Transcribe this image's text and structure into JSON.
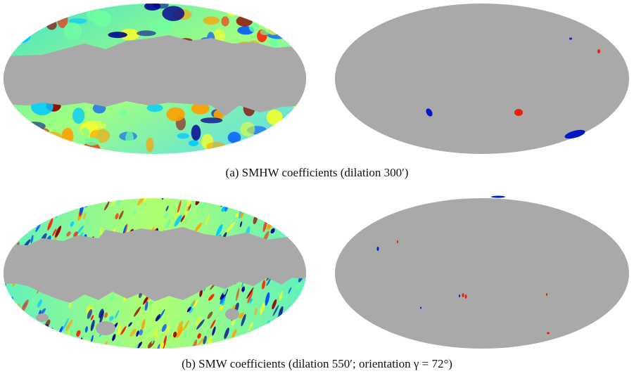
{
  "figure": {
    "panels": [
      {
        "id": "a",
        "caption": "(a)  SMHW coefficients (dilation 300′)",
        "left_map": "masked-wavelet-coefficient-map",
        "right_map": "thresholded-detection-map"
      },
      {
        "id": "b",
        "caption": "(b)  SMW coefficients (dilation 550′; orientation γ = 72°)",
        "left_map": "masked-wavelet-coefficient-map",
        "right_map": "thresholded-detection-map"
      }
    ]
  },
  "colors": {
    "mask_gray": "#a9a9a9",
    "colormap": [
      "#00008f",
      "#0050ff",
      "#00c8ff",
      "#70ffa0",
      "#f0ff30",
      "#ffa000",
      "#ff2000",
      "#8f0000"
    ],
    "positive_spot": "#e8200a",
    "negative_spot": "#0018c8"
  }
}
